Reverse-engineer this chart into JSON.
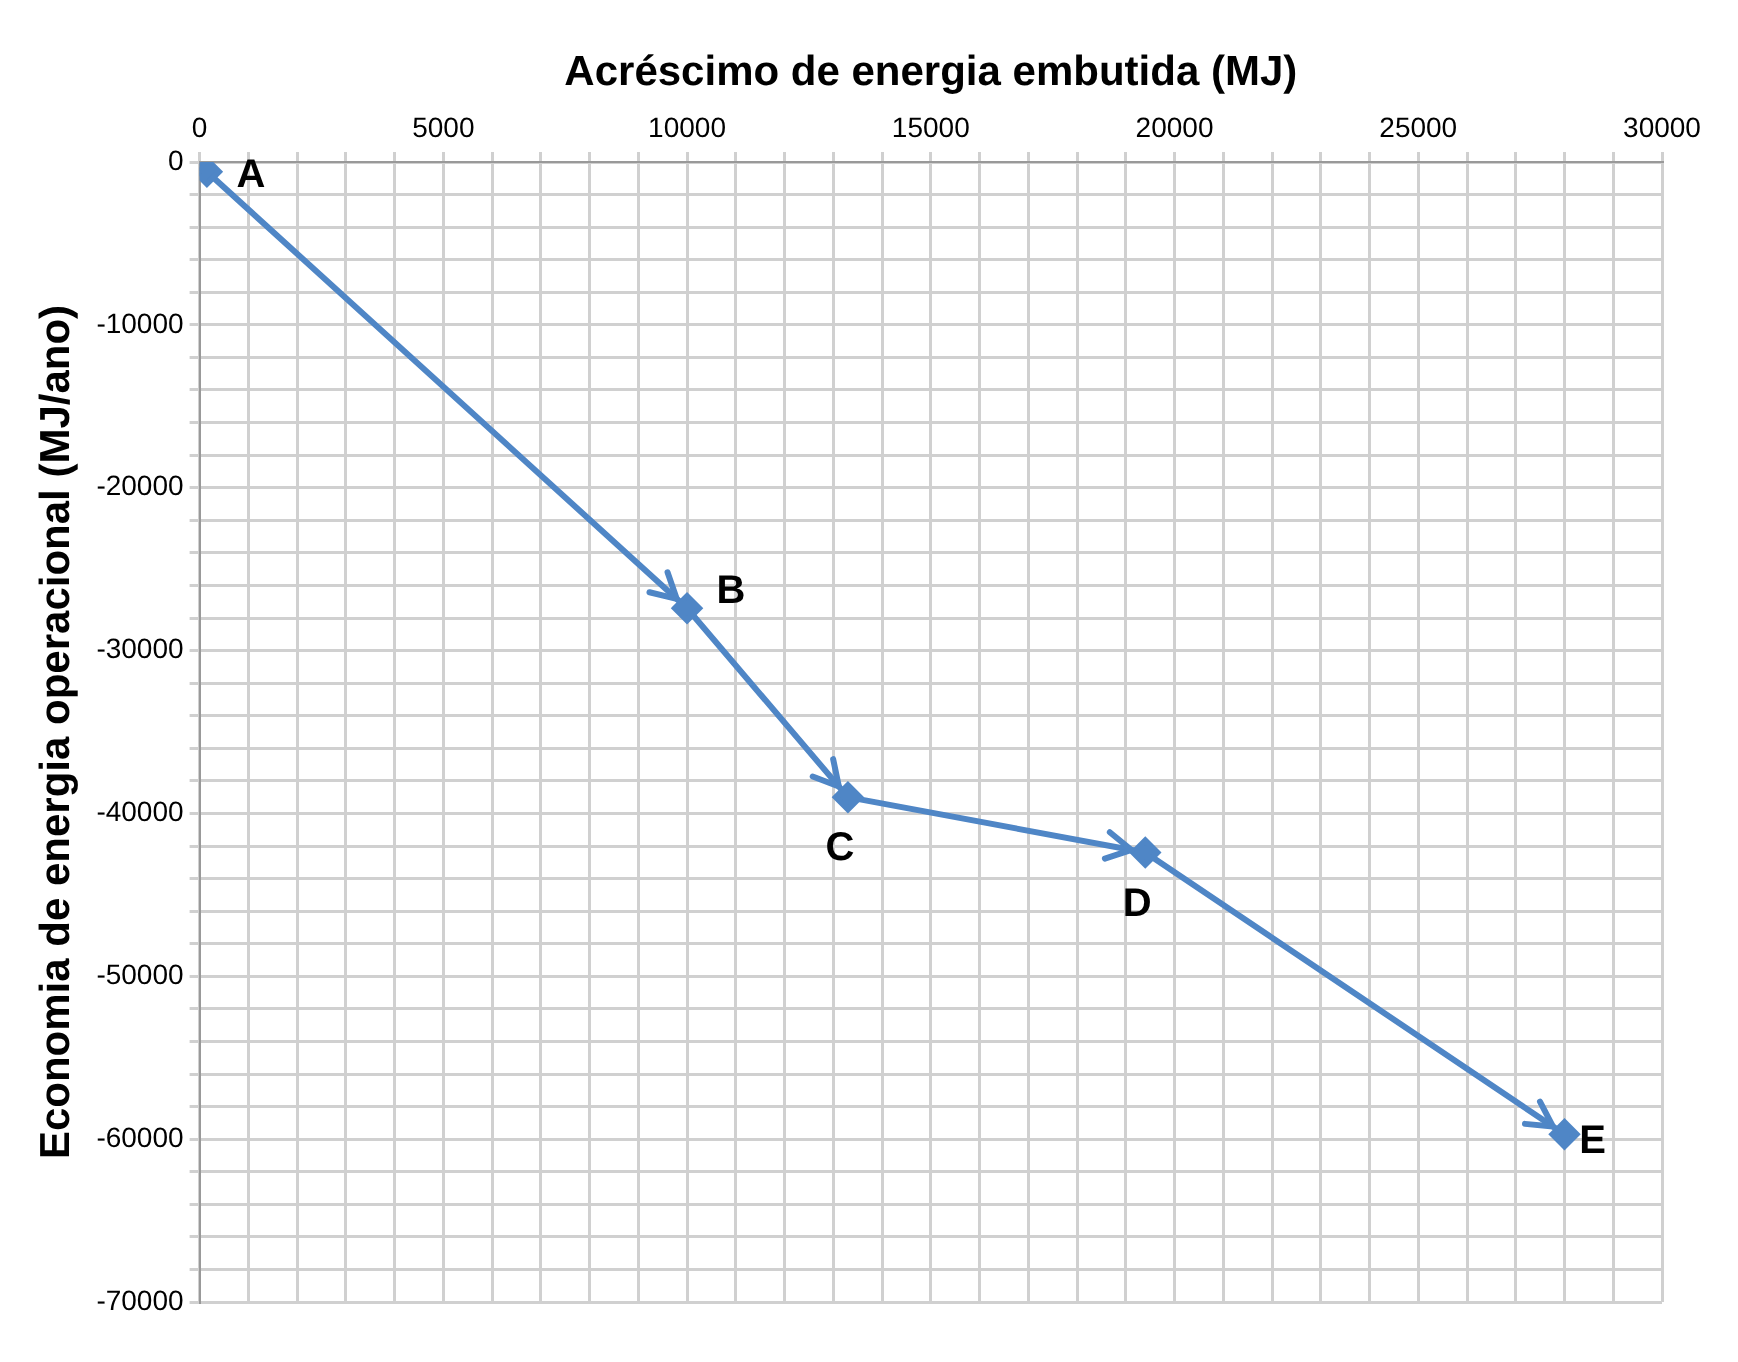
{
  "chart_data": {
    "type": "line",
    "xlabel": "Acréscimo de energia embutida (MJ)",
    "ylabel": "Economia de energia operacional (MJ/ano)",
    "x": [
      150,
      10000,
      13300,
      19400,
      28000
    ],
    "series": [
      {
        "color": "#4f86c6",
        "values": [
          -600,
          -27400,
          -39000,
          -42400,
          -59700
        ]
      }
    ],
    "marker": "diamond",
    "grid": true,
    "legend": false,
    "xlim": [
      0,
      30000
    ],
    "xticks": [
      0,
      {
        "value": 1000,
        "label": null
      },
      {
        "value": 2000,
        "label": null
      },
      {
        "value": 3000,
        "label": null
      },
      {
        "value": 4000,
        "label": null
      },
      5000,
      {
        "value": 6000,
        "label": null
      },
      {
        "value": 7000,
        "label": null
      },
      {
        "value": 8000,
        "label": null
      },
      {
        "value": 9000,
        "label": null
      },
      10000,
      {
        "value": 11000,
        "label": null
      },
      {
        "value": 12000,
        "label": null
      },
      {
        "value": 13000,
        "label": null
      },
      {
        "value": 14000,
        "label": null
      },
      15000,
      {
        "value": 16000,
        "label": null
      },
      {
        "value": 17000,
        "label": null
      },
      {
        "value": 18000,
        "label": null
      },
      {
        "value": 19000,
        "label": null
      },
      20000,
      {
        "value": 21000,
        "label": null
      },
      {
        "value": 22000,
        "label": null
      },
      {
        "value": 23000,
        "label": null
      },
      {
        "value": 24000,
        "label": null
      },
      25000,
      {
        "value": 26000,
        "label": null
      },
      {
        "value": 27000,
        "label": null
      },
      {
        "value": 28000,
        "label": null
      },
      {
        "value": 29000,
        "label": null
      },
      30000
    ],
    "ylim": [
      -70000,
      0
    ],
    "yticks": [
      -70000,
      {
        "value": -68000,
        "label": null
      },
      {
        "value": -66000,
        "label": null
      },
      {
        "value": -64000,
        "label": null
      },
      {
        "value": -62000,
        "label": null
      },
      -60000,
      {
        "value": -58000,
        "label": null
      },
      {
        "value": -56000,
        "label": null
      },
      {
        "value": -54000,
        "label": null
      },
      {
        "value": -52000,
        "label": null
      },
      -50000,
      {
        "value": -48000,
        "label": null
      },
      {
        "value": -46000,
        "label": null
      },
      {
        "value": -44000,
        "label": null
      },
      {
        "value": -42000,
        "label": null
      },
      -40000,
      {
        "value": -38000,
        "label": null
      },
      {
        "value": -36000,
        "label": null
      },
      {
        "value": -34000,
        "label": null
      },
      {
        "value": -32000,
        "label": null
      },
      -30000,
      {
        "value": -28000,
        "label": null
      },
      {
        "value": -26000,
        "label": null
      },
      {
        "value": -24000,
        "label": null
      },
      {
        "value": -22000,
        "label": null
      },
      -20000,
      {
        "value": -18000,
        "label": null
      },
      {
        "value": -16000,
        "label": null
      },
      {
        "value": -14000,
        "label": null
      },
      {
        "value": -12000,
        "label": null
      },
      -10000,
      {
        "value": -8000,
        "label": null
      },
      {
        "value": -6000,
        "label": null
      },
      {
        "value": -4000,
        "label": null
      },
      {
        "value": -2000,
        "label": null
      },
      0
    ],
    "annotations": [
      {
        "text": "A",
        "x": 150,
        "y": -600
      },
      {
        "text": "B",
        "x": 10000,
        "y": -27400
      },
      {
        "text": "C",
        "x": 13300,
        "y": -39000
      },
      {
        "text": "D",
        "x": 19400,
        "y": -42400
      },
      {
        "text": "E",
        "x": 28000,
        "y": -59700
      }
    ]
  }
}
